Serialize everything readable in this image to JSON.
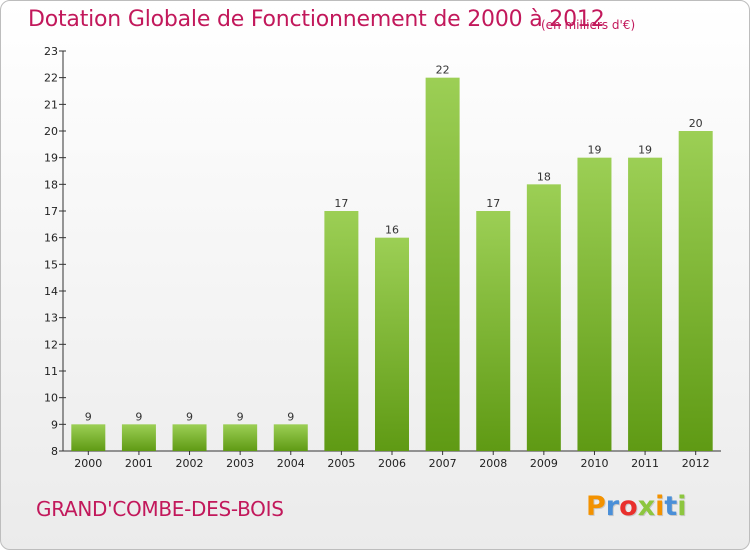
{
  "title": "Dotation Globale de Fonctionnement de 2000 à 2012",
  "unit": "(en milliers d'€)",
  "commune": "GRAND'COMBE-DES-BOIS",
  "logo": {
    "letters": [
      "P",
      "r",
      "o",
      "x",
      "i",
      "t",
      "i"
    ],
    "colors": [
      "#f39200",
      "#4a8fd8",
      "#e9302c",
      "#8dc63f",
      "#f39200",
      "#4a8fd8",
      "#8dc63f"
    ]
  },
  "colors": {
    "bar_top": "#9ccf55",
    "bar_bottom": "#5f9a14",
    "title": "#c2185b"
  },
  "chart_data": {
    "type": "bar",
    "title": "Dotation Globale de Fonctionnement de 2000 à 2012",
    "xlabel": "",
    "ylabel": "",
    "categories": [
      "2000",
      "2001",
      "2002",
      "2003",
      "2004",
      "2005",
      "2006",
      "2007",
      "2008",
      "2009",
      "2010",
      "2011",
      "2012"
    ],
    "values": [
      9,
      9,
      9,
      9,
      9,
      17,
      16,
      22,
      17,
      18,
      19,
      19,
      20
    ],
    "ylim": [
      8,
      23
    ],
    "yticks": [
      8,
      9,
      10,
      11,
      12,
      13,
      14,
      15,
      16,
      17,
      18,
      19,
      20,
      21,
      22,
      23
    ],
    "grid": false
  }
}
